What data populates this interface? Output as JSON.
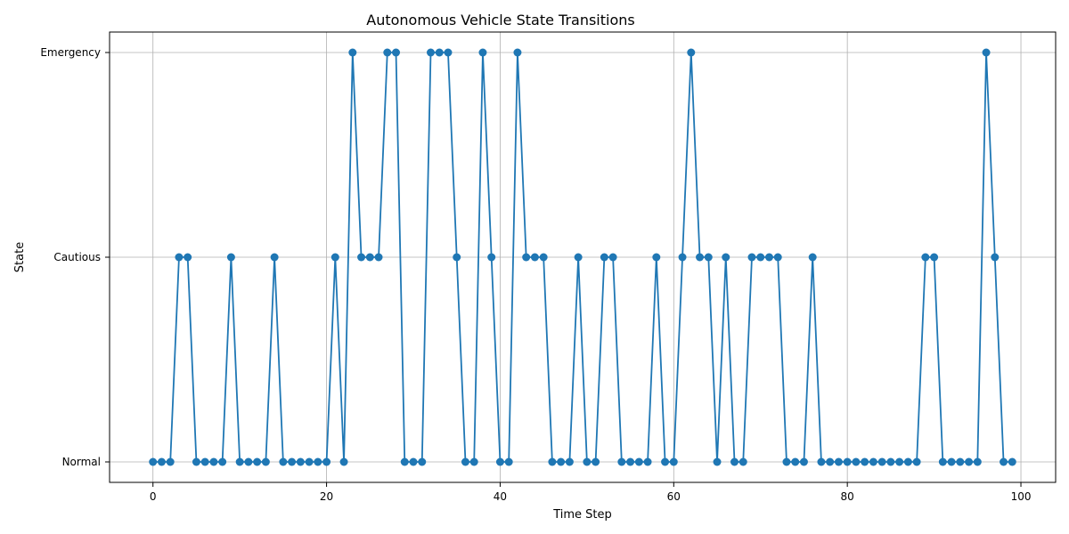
{
  "chart_data": {
    "type": "line",
    "title": "Autonomous Vehicle State Transitions",
    "xlabel": "Time Step",
    "ylabel": "State",
    "xlim": [
      -5,
      104
    ],
    "ylim": [
      -0.1,
      2.1
    ],
    "xticks": [
      0,
      20,
      40,
      60,
      80,
      100
    ],
    "y_categories": [
      "Normal",
      "Cautious",
      "Emergency"
    ],
    "grid": true,
    "color": "#1f77b4",
    "marker": "circle",
    "x": [
      0,
      1,
      2,
      3,
      4,
      5,
      6,
      7,
      8,
      9,
      10,
      11,
      12,
      13,
      14,
      15,
      16,
      17,
      18,
      19,
      20,
      21,
      22,
      23,
      24,
      25,
      26,
      27,
      28,
      29,
      30,
      31,
      32,
      33,
      34,
      35,
      36,
      37,
      38,
      39,
      40,
      41,
      42,
      43,
      44,
      45,
      46,
      47,
      48,
      49,
      50,
      51,
      52,
      53,
      54,
      55,
      56,
      57,
      58,
      59,
      60,
      61,
      62,
      63,
      64,
      65,
      66,
      67,
      68,
      69,
      70,
      71,
      72,
      73,
      74,
      75,
      76,
      77,
      78,
      79,
      80,
      81,
      82,
      83,
      84,
      85,
      86,
      87,
      88,
      89,
      90,
      91,
      92,
      93,
      94,
      95,
      96,
      97,
      98,
      99
    ],
    "values": [
      0,
      0,
      0,
      1,
      1,
      0,
      0,
      0,
      0,
      1,
      0,
      0,
      0,
      0,
      1,
      0,
      0,
      0,
      0,
      0,
      0,
      1,
      0,
      2,
      1,
      1,
      1,
      2,
      2,
      0,
      0,
      0,
      2,
      2,
      2,
      1,
      0,
      0,
      2,
      1,
      0,
      0,
      2,
      1,
      1,
      1,
      0,
      0,
      0,
      1,
      0,
      0,
      1,
      1,
      0,
      0,
      0,
      0,
      1,
      0,
      0,
      1,
      2,
      1,
      1,
      0,
      1,
      0,
      0,
      1,
      1,
      1,
      1,
      0,
      0,
      0,
      1,
      0,
      0,
      0,
      0,
      0,
      0,
      0,
      0,
      0,
      0,
      0,
      0,
      1,
      1,
      0,
      0,
      0,
      0,
      0,
      2,
      1,
      0,
      0
    ]
  }
}
